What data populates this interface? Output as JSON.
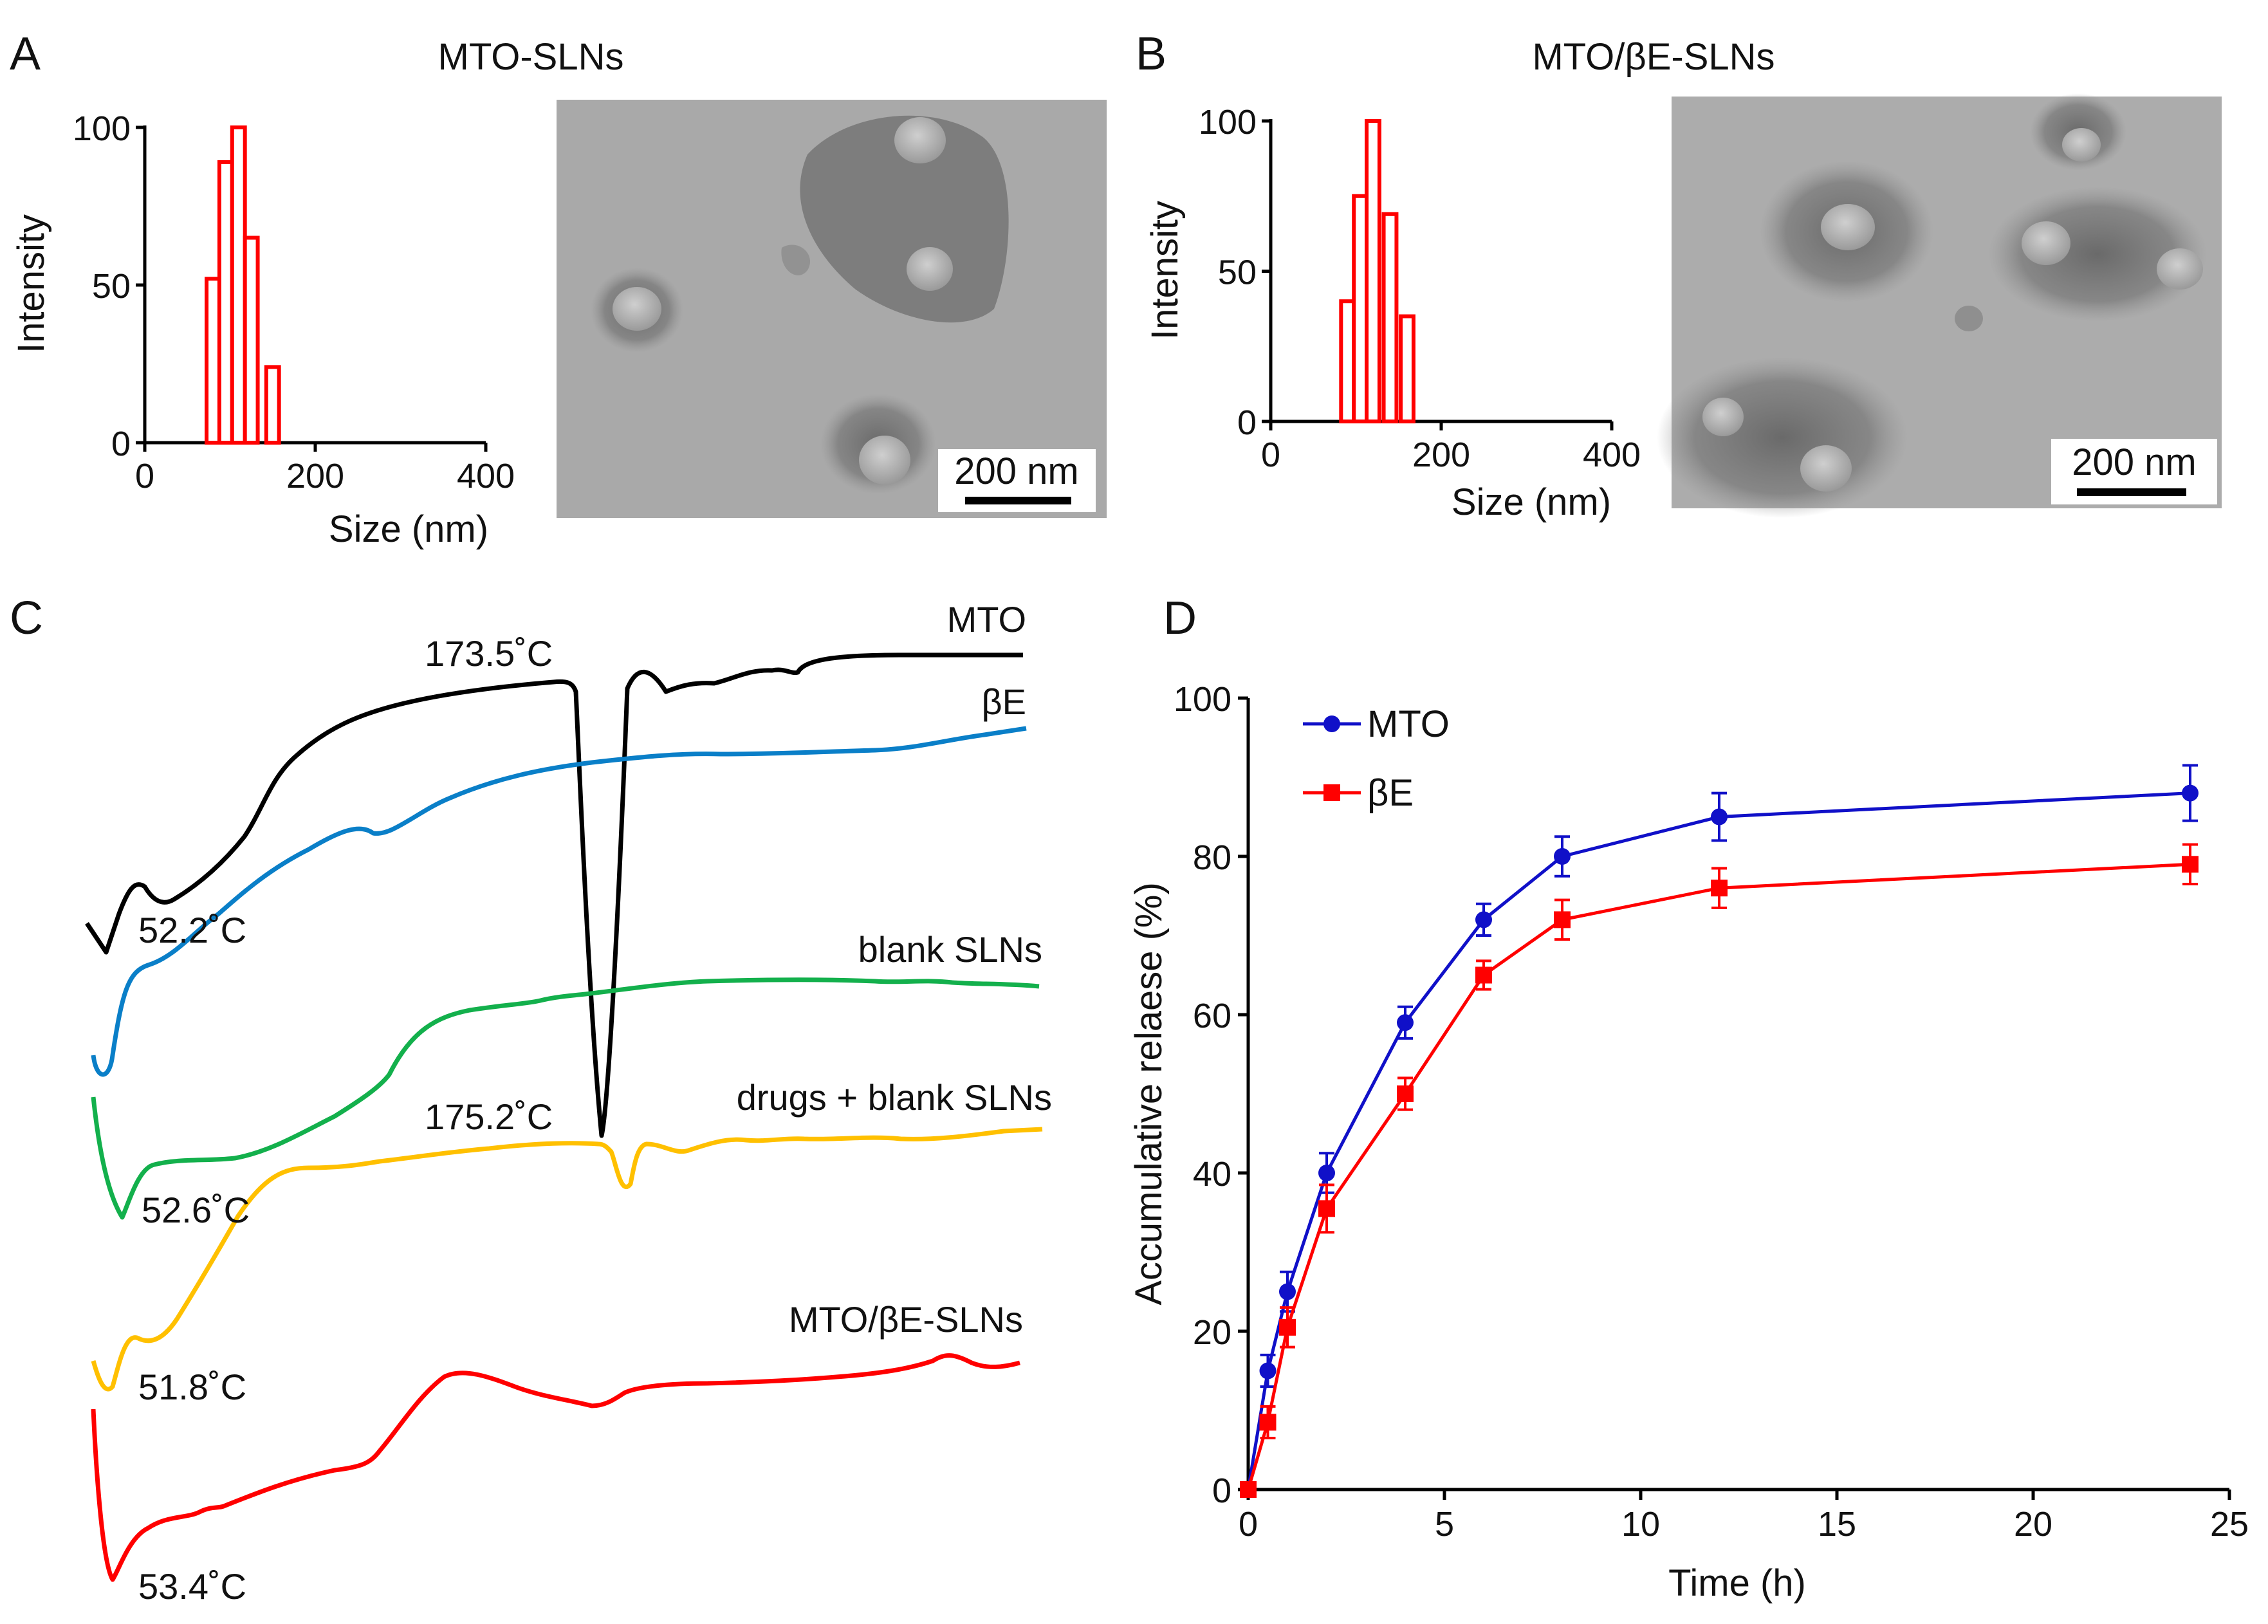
{
  "panel_letters": [
    "A",
    "B",
    "C",
    "D"
  ],
  "colors": {
    "red": "#ff0000",
    "blue": "#1010c8",
    "black": "#000000",
    "lightblue": "#0a7fc8",
    "green": "#13b04c",
    "yellow": "#ffc000",
    "tem_bg": "#a9a9a9"
  },
  "tem": {
    "scale_label": "200 nm"
  },
  "chart_data": [
    {
      "id": "A",
      "type": "bar",
      "title": "MTO-SLNs",
      "xlabel": "Size (nm)",
      "ylabel": "Intensity",
      "xlim": [
        0,
        400
      ],
      "ylim": [
        0,
        100
      ],
      "xticks": [
        0,
        200,
        400
      ],
      "yticks": [
        0,
        50,
        100
      ],
      "bin_width": 15,
      "bins": [
        {
          "x": 80,
          "y": 52
        },
        {
          "x": 95,
          "y": 89
        },
        {
          "x": 110,
          "y": 100
        },
        {
          "x": 125,
          "y": 65
        },
        {
          "x": 150,
          "y": 24
        }
      ]
    },
    {
      "id": "B",
      "type": "bar",
      "title": "MTO/βE-SLNs",
      "xlabel": "Size (nm)",
      "ylabel": "Intensity",
      "xlim": [
        0,
        400
      ],
      "ylim": [
        0,
        100
      ],
      "xticks": [
        0,
        200,
        400
      ],
      "yticks": [
        0,
        50,
        100
      ],
      "bin_width": 15,
      "bins": [
        {
          "x": 90,
          "y": 40
        },
        {
          "x": 105,
          "y": 75
        },
        {
          "x": 120,
          "y": 100
        },
        {
          "x": 140,
          "y": 69
        },
        {
          "x": 160,
          "y": 35
        }
      ]
    },
    {
      "id": "C",
      "type": "line",
      "title": "",
      "xlabel": "",
      "ylabel": "",
      "series": [
        {
          "name": "MTO",
          "color": "#000000",
          "annotations": [
            "173.5˚C",
            "52.2˚C"
          ]
        },
        {
          "name": "βE",
          "color": "#0a7fc8",
          "annotations": []
        },
        {
          "name": "blank SLNs",
          "color": "#13b04c",
          "annotations": [
            "52.6˚C"
          ]
        },
        {
          "name": "drugs + blank SLNs",
          "color": "#ffc000",
          "annotations": [
            "175.2˚C",
            "51.8˚C"
          ]
        },
        {
          "name": "MTO/βE-SLNs",
          "color": "#ff0000",
          "annotations": [
            "53.4˚C"
          ]
        }
      ]
    },
    {
      "id": "D",
      "type": "line",
      "title": "",
      "xlabel": "Time (h)",
      "ylabel": "Accumulative relaese (%)",
      "xlim": [
        0,
        25
      ],
      "ylim": [
        0,
        100
      ],
      "xticks": [
        0,
        5,
        10,
        15,
        20,
        25
      ],
      "yticks": [
        0,
        20,
        40,
        60,
        80,
        100
      ],
      "x": [
        0,
        0.5,
        1,
        2,
        4,
        6,
        8,
        12,
        24
      ],
      "series": [
        {
          "name": "MTO",
          "color": "#1010c8",
          "marker": "circle",
          "values": [
            0,
            15,
            25,
            40,
            59,
            72,
            80,
            85,
            88
          ],
          "errors": [
            0,
            2,
            2.5,
            2.5,
            2,
            2,
            2.5,
            3,
            3.5
          ]
        },
        {
          "name": "βE",
          "color": "#ff0000",
          "marker": "square",
          "values": [
            0,
            8.5,
            20.5,
            35.5,
            50,
            65,
            72,
            76,
            79
          ],
          "errors": [
            0,
            2,
            2.5,
            3,
            2,
            1.8,
            2.5,
            2.5,
            2.5
          ]
        }
      ],
      "legend": "top-left"
    }
  ]
}
